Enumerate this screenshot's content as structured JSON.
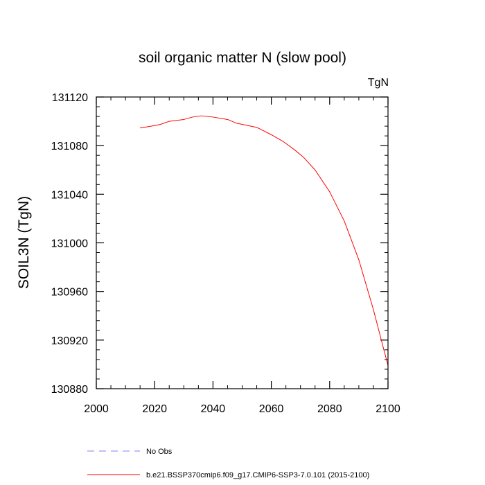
{
  "chart_data": {
    "type": "line",
    "title": "soil organic matter N (slow pool)",
    "units_label": "TgN",
    "xlabel": "",
    "ylabel": "SOIL3N  (TgN)",
    "xlim": [
      2000,
      2100
    ],
    "ylim": [
      130880,
      131120
    ],
    "x_ticks": [
      2000,
      2020,
      2040,
      2060,
      2080,
      2100
    ],
    "y_ticks": [
      130880,
      130920,
      130960,
      131000,
      131040,
      131080,
      131120
    ],
    "x_tick_labels": [
      "2000",
      "2020",
      "2040",
      "2060",
      "2080",
      "2100"
    ],
    "y_tick_labels": [
      "130880",
      "130920",
      "130960",
      "131000",
      "131040",
      "131080",
      "131120"
    ],
    "x_minor_step": 5,
    "y_minor_step": 8,
    "grid": false,
    "legend_position": "bottom-left",
    "series": [
      {
        "name": "b.e21.BSSP370cmip6.f09_g17.CMIP6-SSP3-7.0.101 (2015-2100)",
        "color": "#ff0000",
        "style": "solid",
        "x": [
          2015,
          2020,
          2022,
          2025,
          2030,
          2033,
          2036,
          2040,
          2045,
          2048,
          2052,
          2055,
          2060,
          2064,
          2068,
          2071,
          2075,
          2080,
          2085,
          2090,
          2095,
          2100
        ],
        "y": [
          131094.5,
          131096.5,
          131097.5,
          131100.0,
          131101.5,
          131103.5,
          131104.5,
          131103.5,
          131101.5,
          131098.5,
          131096.5,
          131095.0,
          131089.0,
          131083.5,
          131076.5,
          131070.5,
          131060.0,
          131042.0,
          131018.0,
          130986.0,
          130945.0,
          130899.0
        ]
      }
    ],
    "legend": [
      {
        "label": "No Obs",
        "color": "#7f7fff",
        "style": "dashed"
      },
      {
        "label": "b.e21.BSSP370cmip6.f09_g17.CMIP6-SSP3-7.0.101 (2015-2100)",
        "color": "#ff0000",
        "style": "solid"
      }
    ]
  }
}
